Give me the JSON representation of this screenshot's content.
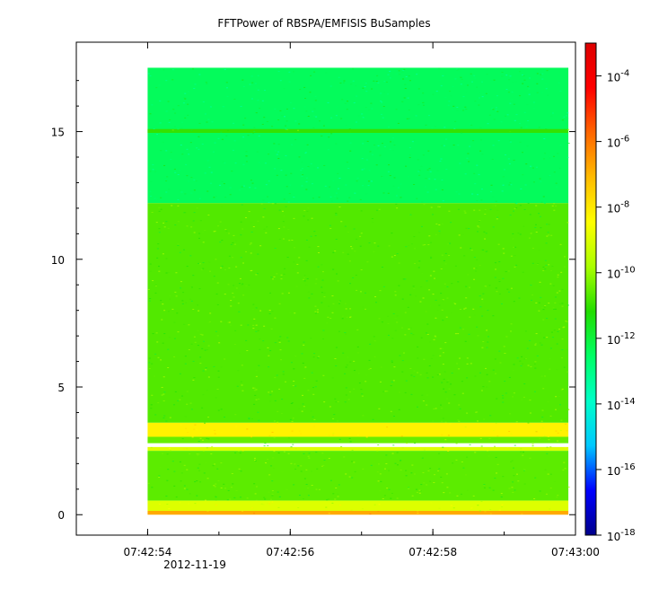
{
  "chart_data": {
    "type": "heatmap",
    "title": "FFTPower of RBSPA/EMFISIS  BuSamples",
    "date_label": "2012-11-19",
    "x_ticks": [
      {
        "value": "07:42:54",
        "show_date": true
      },
      {
        "value": "07:42:56",
        "show_date": false
      },
      {
        "value": "07:42:58",
        "show_date": false
      },
      {
        "value": "07:43:00",
        "show_date": false
      }
    ],
    "x_range": [
      "07:42:53.0",
      "07:43:00.0"
    ],
    "data_x_range": [
      "07:42:54.0",
      "07:42:59.9"
    ],
    "y_ticks": [
      "0",
      "5",
      "10",
      "15"
    ],
    "ylim": [
      -0.8,
      18.5
    ],
    "data_y_range": [
      0,
      17.5
    ],
    "colorbar": {
      "scale": "log",
      "range": [
        1e-18,
        0.001
      ],
      "ticks": [
        {
          "base": "10",
          "exp": "-4",
          "value": -4
        },
        {
          "base": "10",
          "exp": "-6",
          "value": -6
        },
        {
          "base": "10",
          "exp": "-8",
          "value": -8
        },
        {
          "base": "10",
          "exp": "-10",
          "value": -10
        },
        {
          "base": "10",
          "exp": "-12",
          "value": -12
        },
        {
          "base": "10",
          "exp": "-14",
          "value": -14
        },
        {
          "base": "10",
          "exp": "-16",
          "value": -16
        },
        {
          "base": "10",
          "exp": "-18",
          "value": -18
        }
      ],
      "colors": [
        "#00008b",
        "#0000ff",
        "#00c8ff",
        "#00ffc8",
        "#00ff66",
        "#22dd00",
        "#aaff00",
        "#ffff00",
        "#ffbb00",
        "#ff6600",
        "#ff0000",
        "#dd0000"
      ]
    },
    "bands": [
      {
        "y_from": 12.2,
        "y_to": 17.5,
        "log_power": -12.4
      },
      {
        "y_from": 14.95,
        "y_to": 15.1,
        "log_power": -11.0
      },
      {
        "y_from": 3.6,
        "y_to": 12.2,
        "log_power": -10.7
      },
      {
        "y_from": 3.05,
        "y_to": 3.6,
        "log_power": -8.2
      },
      {
        "y_from": 2.8,
        "y_to": 3.05,
        "log_power": -10.5
      },
      {
        "y_from": 2.5,
        "y_to": 2.65,
        "log_power": -9.0
      },
      {
        "y_from": 0.55,
        "y_to": 2.5,
        "log_power": -10.6
      },
      {
        "y_from": 0.15,
        "y_to": 0.55,
        "log_power": -9.0
      },
      {
        "y_from": 0.0,
        "y_to": 0.15,
        "log_power": -6.8
      }
    ]
  }
}
